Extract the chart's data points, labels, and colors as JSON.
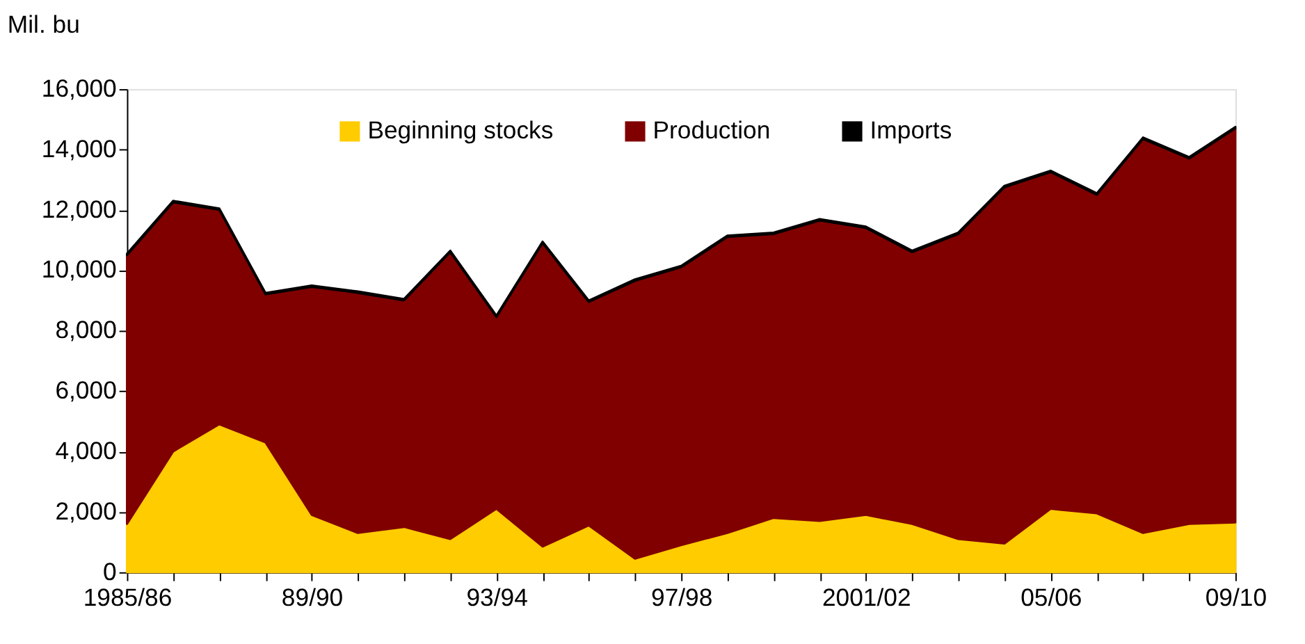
{
  "chart_data": {
    "type": "area",
    "stacked": true,
    "ylabel": "Mil. bu",
    "categories": [
      "1985/86",
      null,
      null,
      null,
      "89/90",
      null,
      null,
      null,
      "93/94",
      null,
      null,
      null,
      "97/98",
      null,
      null,
      null,
      "2001/02",
      null,
      null,
      null,
      "05/06",
      null,
      null,
      null,
      "09/10"
    ],
    "series": [
      {
        "name": "Beginning stocks",
        "color": "#ffcc00",
        "values": [
          1600,
          4000,
          4900,
          4300,
          1900,
          1300,
          1500,
          1100,
          2100,
          850,
          1550,
          450,
          900,
          1300,
          1800,
          1700,
          1900,
          1600,
          1100,
          950,
          2100,
          1950,
          1300,
          1600,
          1650
        ]
      },
      {
        "name": "Production",
        "color": "#800000",
        "values": [
          8900,
          8250,
          7100,
          4900,
          7550,
          7950,
          7500,
          9500,
          6350,
          10050,
          7400,
          9200,
          9200,
          9800,
          9400,
          9950,
          9500,
          9000,
          10100,
          11800,
          11150,
          10550,
          13050,
          12100,
          13050
        ]
      },
      {
        "name": "Imports",
        "color": "#000000",
        "values": [
          50,
          50,
          50,
          50,
          50,
          50,
          50,
          50,
          50,
          50,
          50,
          50,
          50,
          50,
          50,
          50,
          50,
          50,
          50,
          50,
          50,
          50,
          50,
          50,
          50
        ]
      }
    ],
    "ylim": [
      0,
      16000
    ],
    "yticks": [
      {
        "value": 0,
        "label": "0"
      },
      {
        "value": 2000,
        "label": "2,000"
      },
      {
        "value": 4000,
        "label": "4,000"
      },
      {
        "value": 6000,
        "label": "6,000"
      },
      {
        "value": 8000,
        "label": "8,000"
      },
      {
        "value": 10000,
        "label": "10,000"
      },
      {
        "value": 12000,
        "label": "12,000"
      },
      {
        "value": 14000,
        "label": "14,000"
      },
      {
        "value": 16000,
        "label": "16,000"
      }
    ],
    "grid": false,
    "legend": "top"
  }
}
